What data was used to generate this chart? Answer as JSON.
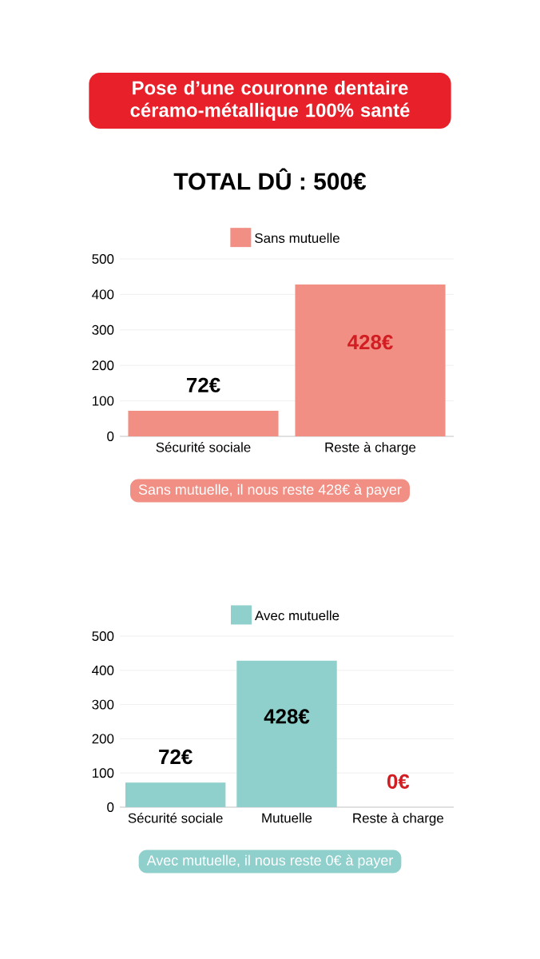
{
  "chart_data": [
    {
      "type": "bar",
      "title": "Pose d’une couronne dentaire céramo-métallique 100% santé",
      "subtitle": "TOTAL DÛ : 500€",
      "categories": [
        "Sécurité sociale",
        "Reste à charge"
      ],
      "series": [
        {
          "name": "Sans mutuelle",
          "color": "#f28f84",
          "values": [
            72,
            428
          ],
          "value_labels": [
            "72€",
            "428€"
          ]
        }
      ],
      "ylim": [
        0,
        500
      ],
      "yticks": [
        0,
        100,
        200,
        300,
        400,
        500
      ],
      "grid": "y",
      "legend": "top",
      "annotations": [
        "Sans mutuelle, il nous reste 428€ à payer"
      ]
    },
    {
      "type": "bar",
      "categories": [
        "Sécurité sociale",
        "Mutuelle",
        "Reste à charge"
      ],
      "series": [
        {
          "name": "Avec mutuelle",
          "color": "#8fcfcc",
          "values": [
            72,
            428,
            0
          ],
          "value_labels": [
            "72€",
            "428€",
            "0€"
          ]
        }
      ],
      "ylim": [
        0,
        500
      ],
      "yticks": [
        0,
        100,
        200,
        300,
        400,
        500
      ],
      "grid": "y",
      "legend": "top",
      "annotations": [
        "Avec mutuelle, il nous reste 0€ à payer"
      ]
    }
  ]
}
